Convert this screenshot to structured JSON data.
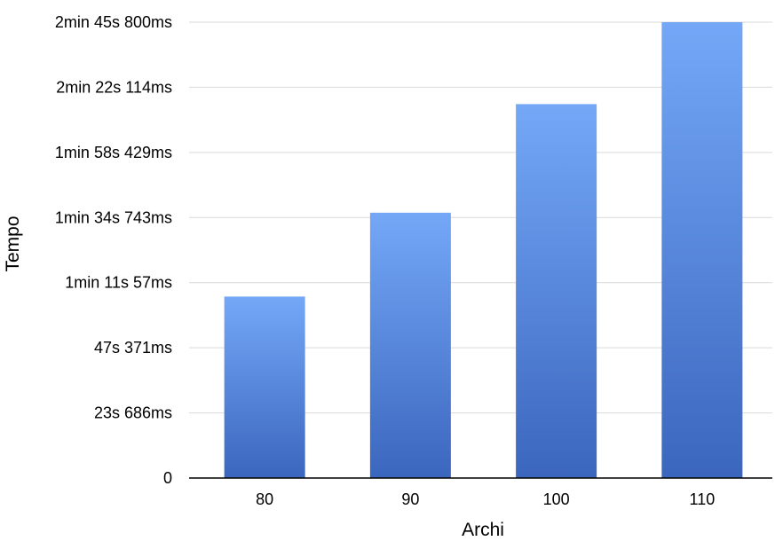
{
  "chart_data": {
    "type": "bar",
    "xlabel": "Archi",
    "ylabel": "Tempo",
    "categories": [
      "80",
      "90",
      "100",
      "110"
    ],
    "values": [
      66000,
      96500,
      136000,
      165800
    ],
    "ylim": [
      0,
      165800
    ],
    "yticks": [
      0,
      23686,
      47371,
      71057,
      94743,
      118429,
      142114,
      165800
    ],
    "ytick_labels": [
      "0",
      "23s 686ms",
      "47s 371ms",
      "1min 11s 57ms",
      "1min 34s 743ms",
      "1min 58s 429ms",
      "2min 22s 114ms",
      "2min 45s 800ms"
    ],
    "grid": true,
    "legend": "none",
    "colors": {
      "bar_top": "#74a8f7",
      "bar_bottom": "#3b66be",
      "grid": "#d9d9d9",
      "axis": "#000000"
    }
  }
}
